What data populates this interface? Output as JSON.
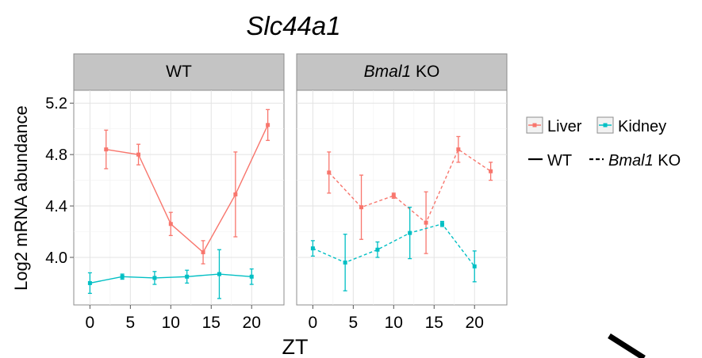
{
  "chart_data": {
    "type": "line",
    "title": "Slc44a1",
    "xlabel": "ZT",
    "ylabel": "Log2 mRNA abundance",
    "xlim": [
      -2,
      24
    ],
    "ylim": [
      3.63,
      5.3
    ],
    "xticks": [
      0,
      5,
      10,
      15,
      20
    ],
    "yticks": [
      4.0,
      4.4,
      4.8,
      5.2
    ],
    "ytick_labels": [
      "4.0",
      "4.4",
      "4.8",
      "5.2"
    ],
    "grid": true,
    "legend_position": "right",
    "legend": {
      "tissue": [
        {
          "label": "Liver",
          "color": "#f8766d"
        },
        {
          "label": "Kidney",
          "color": "#00bfc4"
        }
      ],
      "genotype": [
        {
          "label": "WT",
          "line": "solid"
        },
        {
          "label_italic": "Bmal1",
          "label_rest": " KO",
          "line": "dashed"
        }
      ]
    },
    "panels": [
      {
        "strip_italic": "",
        "strip_rest": "WT",
        "linestyle": "solid",
        "series": [
          {
            "name": "Liver",
            "color": "#f8766d",
            "x": [
              2,
              6,
              10,
              14,
              18,
              22
            ],
            "y": [
              4.84,
              4.8,
              4.26,
              4.04,
              4.49,
              5.03
            ],
            "err": [
              0.15,
              0.08,
              0.09,
              0.09,
              0.33,
              0.12
            ]
          },
          {
            "name": "Kidney",
            "color": "#00bfc4",
            "x": [
              0,
              4,
              8,
              12,
              16,
              20
            ],
            "y": [
              3.8,
              3.85,
              3.84,
              3.85,
              3.87,
              3.85
            ],
            "err": [
              0.08,
              0.02,
              0.05,
              0.05,
              0.19,
              0.06
            ]
          }
        ]
      },
      {
        "strip_italic": "Bmal1",
        "strip_rest": " KO",
        "linestyle": "dashed",
        "series": [
          {
            "name": "Liver",
            "color": "#f8766d",
            "x": [
              2,
              6,
              10,
              14,
              18,
              22
            ],
            "y": [
              4.66,
              4.39,
              4.48,
              4.27,
              4.84,
              4.67
            ],
            "err": [
              0.16,
              0.25,
              0.02,
              0.24,
              0.1,
              0.07
            ]
          },
          {
            "name": "Kidney",
            "color": "#00bfc4",
            "x": [
              0,
              4,
              8,
              12,
              16,
              20
            ],
            "y": [
              4.07,
              3.96,
              4.06,
              4.19,
              4.26,
              3.93
            ],
            "err": [
              0.06,
              0.22,
              0.06,
              0.2,
              0.02,
              0.12
            ]
          }
        ]
      }
    ]
  },
  "stray_mark_color": "#000000"
}
